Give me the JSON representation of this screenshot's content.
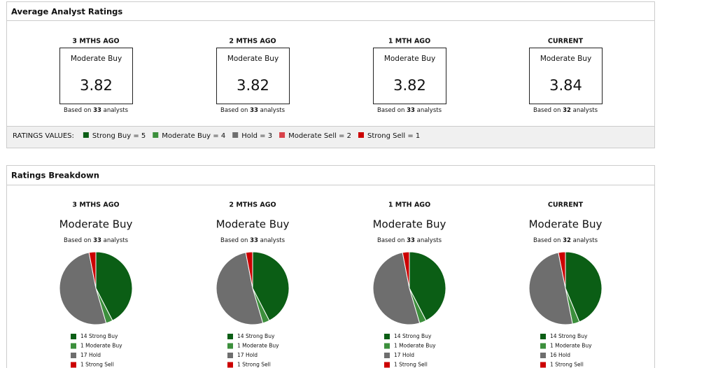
{
  "average": {
    "title": "Average Analyst Ratings",
    "based_on": "Based on",
    "analysts_word": "analysts",
    "periods": [
      {
        "label": "3 MTHS AGO",
        "rating": "Moderate Buy",
        "score": 3.82,
        "analysts": 33
      },
      {
        "label": "2 MTHS AGO",
        "rating": "Moderate Buy",
        "score": 3.82,
        "analysts": 33
      },
      {
        "label": "1 MTH AGO",
        "rating": "Moderate Buy",
        "score": 3.82,
        "analysts": 33
      },
      {
        "label": "CURRENT",
        "rating": "Moderate Buy",
        "score": 3.84,
        "analysts": 32
      }
    ],
    "legend_title": "RATINGS VALUES:",
    "legend": [
      {
        "text": "Strong Buy = 5",
        "color": "#0b5e15"
      },
      {
        "text": "Moderate Buy = 4",
        "color": "#3c8f3c"
      },
      {
        "text": "Hold = 3",
        "color": "#6e6e6e"
      },
      {
        "text": "Moderate Sell = 2",
        "color": "#d9424a"
      },
      {
        "text": "Strong Sell = 1",
        "color": "#cc0000"
      }
    ]
  },
  "breakdown": {
    "title": "Ratings Breakdown",
    "periods": [
      {
        "label": "3 MTHS AGO",
        "rating": "Moderate Buy",
        "analysts": 33,
        "chart_data": {
          "type": "pie",
          "series": [
            {
              "name": "Strong Buy",
              "value": 14,
              "color": "#0b5e15"
            },
            {
              "name": "Moderate Buy",
              "value": 1,
              "color": "#3c8f3c"
            },
            {
              "name": "Hold",
              "value": 17,
              "color": "#6e6e6e"
            },
            {
              "name": "Strong Sell",
              "value": 1,
              "color": "#cc0000"
            }
          ]
        }
      },
      {
        "label": "2 MTHS AGO",
        "rating": "Moderate Buy",
        "analysts": 33,
        "chart_data": {
          "type": "pie",
          "series": [
            {
              "name": "Strong Buy",
              "value": 14,
              "color": "#0b5e15"
            },
            {
              "name": "Moderate Buy",
              "value": 1,
              "color": "#3c8f3c"
            },
            {
              "name": "Hold",
              "value": 17,
              "color": "#6e6e6e"
            },
            {
              "name": "Strong Sell",
              "value": 1,
              "color": "#cc0000"
            }
          ]
        }
      },
      {
        "label": "1 MTH AGO",
        "rating": "Moderate Buy",
        "analysts": 33,
        "chart_data": {
          "type": "pie",
          "series": [
            {
              "name": "Strong Buy",
              "value": 14,
              "color": "#0b5e15"
            },
            {
              "name": "Moderate Buy",
              "value": 1,
              "color": "#3c8f3c"
            },
            {
              "name": "Hold",
              "value": 17,
              "color": "#6e6e6e"
            },
            {
              "name": "Strong Sell",
              "value": 1,
              "color": "#cc0000"
            }
          ]
        }
      },
      {
        "label": "CURRENT",
        "rating": "Moderate Buy",
        "analysts": 32,
        "chart_data": {
          "type": "pie",
          "series": [
            {
              "name": "Strong Buy",
              "value": 14,
              "color": "#0b5e15"
            },
            {
              "name": "Moderate Buy",
              "value": 1,
              "color": "#3c8f3c"
            },
            {
              "name": "Hold",
              "value": 16,
              "color": "#6e6e6e"
            },
            {
              "name": "Strong Sell",
              "value": 1,
              "color": "#cc0000"
            }
          ]
        }
      }
    ]
  }
}
